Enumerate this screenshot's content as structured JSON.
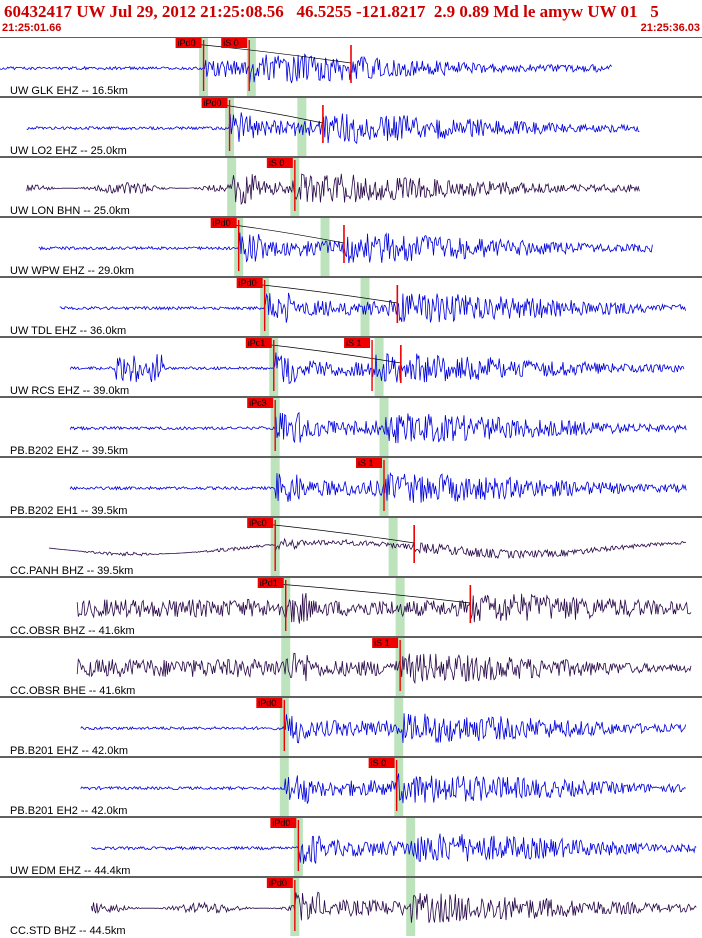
{
  "header": {
    "title": "60432417 UW Jul 29, 2012 21:25:08.56   46.5255 -121.8217  2.9 0.89 Md le amyw UW 01   5",
    "time_start": "21:25:01.66",
    "time_end": "21:25:36.03"
  },
  "colors": {
    "title": "#cc0000",
    "trace_blue": "#0000dd",
    "trace_dark": "#2a0a4a",
    "pick_box": "#ee0000",
    "pick_line": "#ee0000",
    "window_band": "#bde3bd",
    "separator": "#000000"
  },
  "chart_data": {
    "type": "line",
    "title": "60432417 UW Jul 29, 2012 21:25:08.56   46.5255 -121.8217  2.9 0.89 Md le amyw UW 01   5",
    "time_start": "21:25:01.66",
    "time_end": "21:25:36.03",
    "traces": [
      {
        "label": "UW GLK EHZ -- 16.5km",
        "color": "blue",
        "start": 0.0,
        "end": 0.872,
        "p_pick": "iPd0",
        "p_pos": 0.29,
        "s_pick": "iS 0",
        "s_pos": 0.355,
        "extra_pos": 0.5,
        "p_win": 0.29,
        "s_win": 0.358,
        "amp": "tall"
      },
      {
        "label": "UW LO2 EHZ -- 25.0km",
        "color": "blue",
        "start": 0.038,
        "end": 0.912,
        "p_pick": "iPd0",
        "p_pos": 0.327,
        "s_pick": "",
        "s_pos": 0.46,
        "extra_pos": 0.46,
        "p_win": 0.327,
        "s_win": 0.43,
        "amp": "normal"
      },
      {
        "label": "UW LON BHN -- 25.0km",
        "color": "dark",
        "start": 0.038,
        "end": 0.912,
        "p_pick": "",
        "p_pos": 0.33,
        "s_pick": "iS 0",
        "s_pos": 0.42,
        "extra_pos": 0.0,
        "p_win": 0.33,
        "s_win": 0.42,
        "amp": "normal"
      },
      {
        "label": "UW WPW EHZ -- 29.0km",
        "color": "blue",
        "start": 0.055,
        "end": 0.93,
        "p_pick": "iPd0",
        "p_pos": 0.34,
        "s_pick": "",
        "s_pos": 0.49,
        "extra_pos": 0.49,
        "p_win": 0.34,
        "s_win": 0.463,
        "amp": "normal"
      },
      {
        "label": "UW TDL EHZ -- 36.0km",
        "color": "blue",
        "start": 0.085,
        "end": 0.978,
        "p_pick": "iPd0",
        "p_pos": 0.377,
        "s_pick": "",
        "s_pos": 0.566,
        "extra_pos": 0.566,
        "p_win": 0.377,
        "s_win": 0.52,
        "amp": "normal"
      },
      {
        "label": "UW RCS EHZ -- 39.0km",
        "color": "blue",
        "start": 0.1,
        "end": 0.975,
        "p_pick": "iPc1",
        "p_pos": 0.39,
        "s_pick": "iS 1",
        "s_pos": 0.53,
        "extra_pos": 0.571,
        "p_win": 0.39,
        "s_win": 0.54,
        "amp": "normal"
      },
      {
        "label": "PB.B202 EHZ -- 39.5km",
        "color": "blue",
        "start": 0.1,
        "end": 0.978,
        "p_pick": "iPc3",
        "p_pos": 0.392,
        "s_pick": "",
        "s_pos": 0.547,
        "extra_pos": 0.0,
        "p_win": 0.392,
        "s_win": 0.547,
        "amp": "normal"
      },
      {
        "label": "PB.B202 EH1 -- 39.5km",
        "color": "blue",
        "start": 0.1,
        "end": 0.978,
        "p_pick": "",
        "p_pos": 0.392,
        "s_pick": "iS 1",
        "s_pos": 0.547,
        "extra_pos": 0.0,
        "p_win": 0.392,
        "s_win": 0.547,
        "amp": "normal"
      },
      {
        "label": "CC.PANH BHZ -- 39.5km",
        "color": "dark",
        "start": 0.07,
        "end": 0.978,
        "p_pick": "iPc0",
        "p_pos": 0.392,
        "s_pick": "",
        "s_pos": 0.59,
        "extra_pos": 0.59,
        "p_win": 0.392,
        "s_win": 0.56,
        "amp": "normal"
      },
      {
        "label": "CC.OBSR BHZ -- 41.6km",
        "color": "dark",
        "start": 0.11,
        "end": 0.985,
        "p_pick": "iPd1",
        "p_pos": 0.407,
        "s_pick": "",
        "s_pos": 0.67,
        "extra_pos": 0.67,
        "p_win": 0.407,
        "s_win": 0.57,
        "amp": "normal"
      },
      {
        "label": "CC.OBSR BHE -- 41.6km",
        "color": "dark",
        "start": 0.11,
        "end": 0.985,
        "p_pick": "",
        "p_pos": 0.407,
        "s_pick": "iS 1",
        "s_pos": 0.57,
        "extra_pos": 0.0,
        "p_win": 0.407,
        "s_win": 0.57,
        "amp": "normal"
      },
      {
        "label": "PB.B201 EHZ -- 42.0km",
        "color": "blue",
        "start": 0.115,
        "end": 0.978,
        "p_pick": "iPd0",
        "p_pos": 0.405,
        "s_pick": "",
        "s_pos": 0.57,
        "extra_pos": 0.0,
        "p_win": 0.405,
        "s_win": 0.568,
        "amp": "normal"
      },
      {
        "label": "PB.B201 EH2 -- 42.0km",
        "color": "blue",
        "start": 0.115,
        "end": 0.978,
        "p_pick": "",
        "p_pos": 0.405,
        "s_pick": "iS 0",
        "s_pos": 0.565,
        "extra_pos": 0.0,
        "p_win": 0.405,
        "s_win": 0.568,
        "amp": "normal"
      },
      {
        "label": "UW EDM EHZ -- 44.4km",
        "color": "blue",
        "start": 0.13,
        "end": 0.993,
        "p_pick": "iPd0",
        "p_pos": 0.425,
        "s_pick": "",
        "s_pos": 0.585,
        "extra_pos": 0.0,
        "p_win": 0.425,
        "s_win": 0.585,
        "amp": "normal"
      },
      {
        "label": "CC.STD BHZ -- 44.5km",
        "color": "dark",
        "start": 0.13,
        "end": 0.993,
        "p_pick": "iPd0",
        "p_pos": 0.42,
        "s_pick": "",
        "s_pos": 0.585,
        "extra_pos": 0.0,
        "p_win": 0.42,
        "s_win": 0.585,
        "amp": "normal"
      }
    ]
  }
}
